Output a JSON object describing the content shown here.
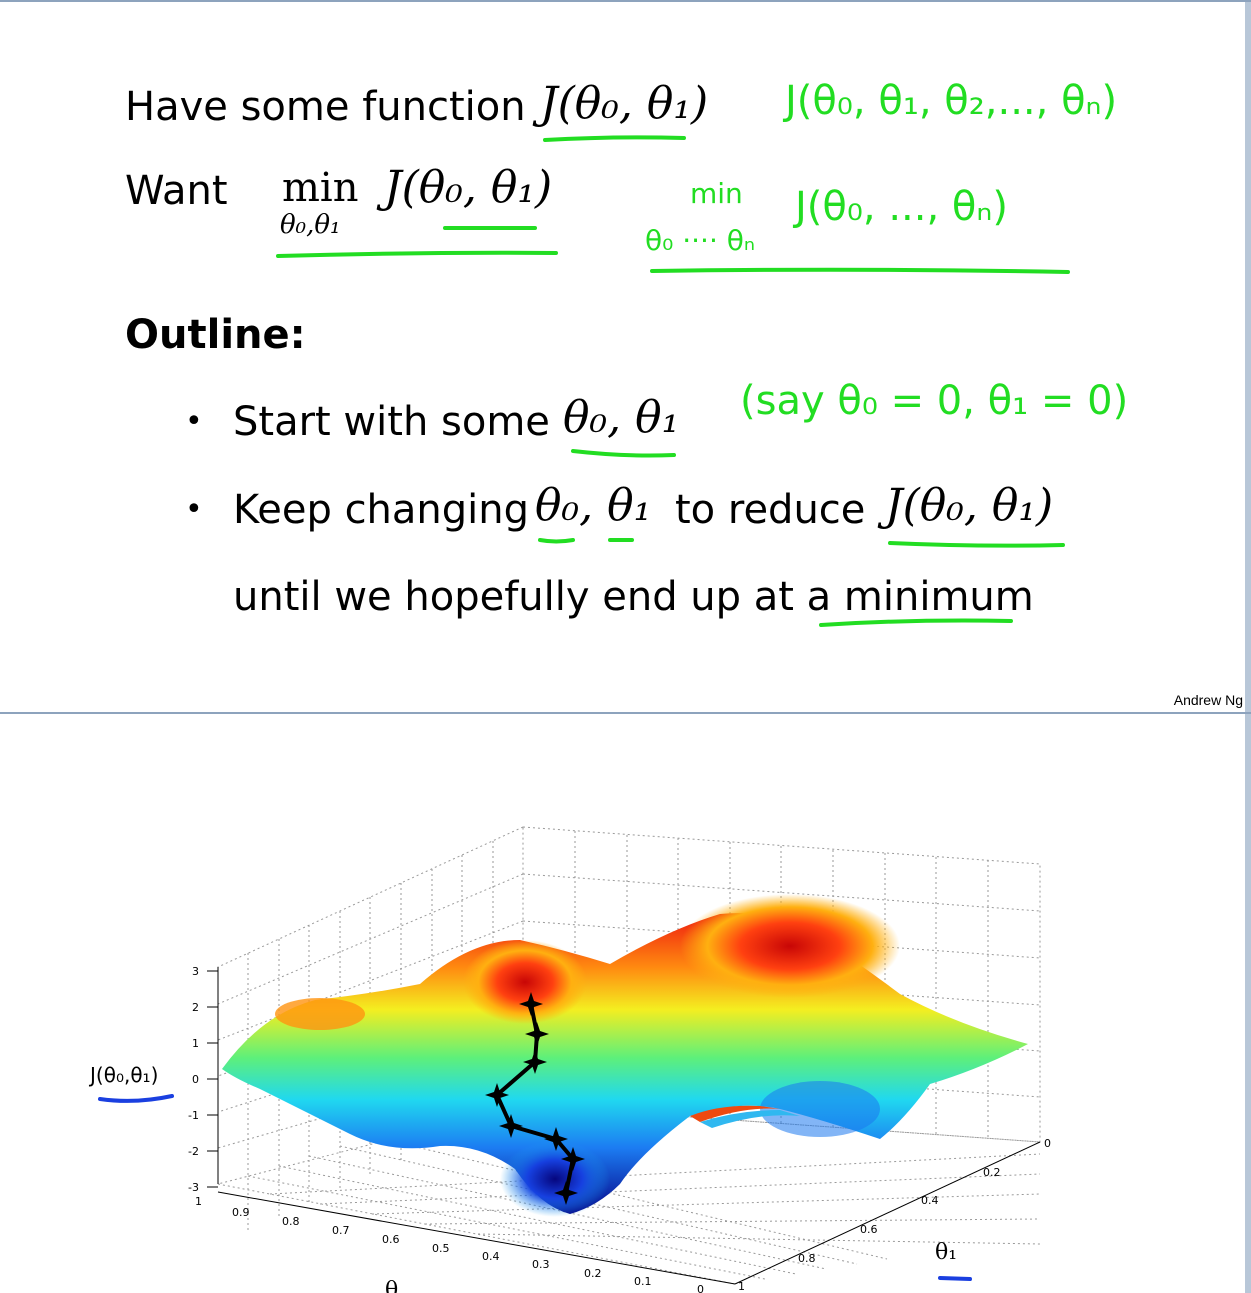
{
  "slide1": {
    "line1": {
      "text": "Have some function",
      "math": "J(θ₀, θ₁)"
    },
    "line2": {
      "text": "Want",
      "math_op": "min",
      "math_sub": "θ₀,θ₁",
      "math": "J(θ₀, θ₁)"
    },
    "outline_heading": "Outline:",
    "bullets": [
      {
        "text": "Start with some",
        "math": "θ₀, θ₁"
      },
      {
        "text": "Keep changing",
        "math": "θ₀, θ₁",
        "text2": "to reduce",
        "math2": "J(θ₀, θ₁)"
      }
    ],
    "continuation": "until we hopefully end up at a minimum",
    "bullet_symbol": "•",
    "credit": "Andrew Ng",
    "handwriting": {
      "general_fn": "J(θ₀, θ₁, θ₂,..., θₙ)",
      "min_label": "min",
      "min_fn": "J(θ₀, ..., θₙ)",
      "min_sub": "θ₀ ···· θₙ",
      "say": "(say θ₀ = 0, θ₁ = 0)"
    },
    "ink_color": "#22dd22"
  },
  "slide2": {
    "z_label": "J(θ₀,θ₁)",
    "z_ticks": [
      "3",
      "2",
      "1",
      "0",
      "-1",
      "-2",
      "-3"
    ],
    "theta0_ticks": [
      "1",
      "0.9",
      "0.8",
      "0.7",
      "0.6",
      "0.5",
      "0.4",
      "0.3",
      "0.2",
      "0.1",
      "0"
    ],
    "theta1_ticks": [
      "0",
      "0.2",
      "0.4",
      "0.6",
      "0.8",
      "1"
    ],
    "theta1_label": "θ₁",
    "theta0_label": "θ",
    "underline_color": "#1a3fe0"
  }
}
